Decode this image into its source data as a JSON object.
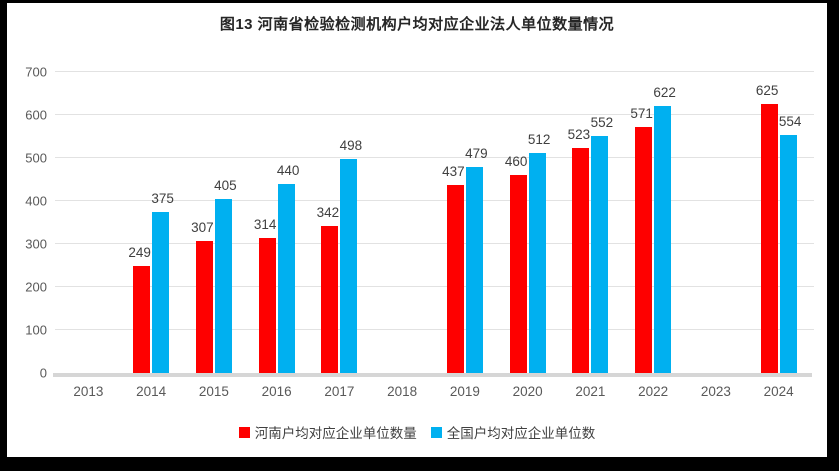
{
  "title": "图13  河南省检验检测机构户均对应企业法人单位数量情况",
  "chart_data": {
    "type": "bar",
    "title": "图13  河南省检验检测机构户均对应企业法人单位数量情况",
    "categories": [
      "2013",
      "2014",
      "2015",
      "2016",
      "2017",
      "2018",
      "2019",
      "2020",
      "2021",
      "2022",
      "2023",
      "2024"
    ],
    "series": [
      {
        "name": "河南户均对应企业单位数量",
        "color": "#fe0000",
        "values": [
          null,
          249,
          307,
          314,
          342,
          null,
          437,
          460,
          523,
          571,
          null,
          625
        ]
      },
      {
        "name": "全国户均对应企业单位数",
        "color": "#00b0f0",
        "values": [
          null,
          375,
          405,
          440,
          498,
          null,
          479,
          512,
          552,
          622,
          null,
          554
        ]
      }
    ],
    "ylim": [
      0,
      700
    ],
    "ytick_step": 100,
    "yticks": [
      0,
      100,
      200,
      300,
      400,
      500,
      600,
      700
    ],
    "grid": true,
    "legend_position": "bottom",
    "data_labels": true
  },
  "colors": {
    "frame_border": "#000000",
    "background": "#ffffff",
    "gridline": "#e2e2e2",
    "axis_text": "#595959",
    "data_label_text": "#3f3f3f",
    "title_text": "#262626"
  }
}
